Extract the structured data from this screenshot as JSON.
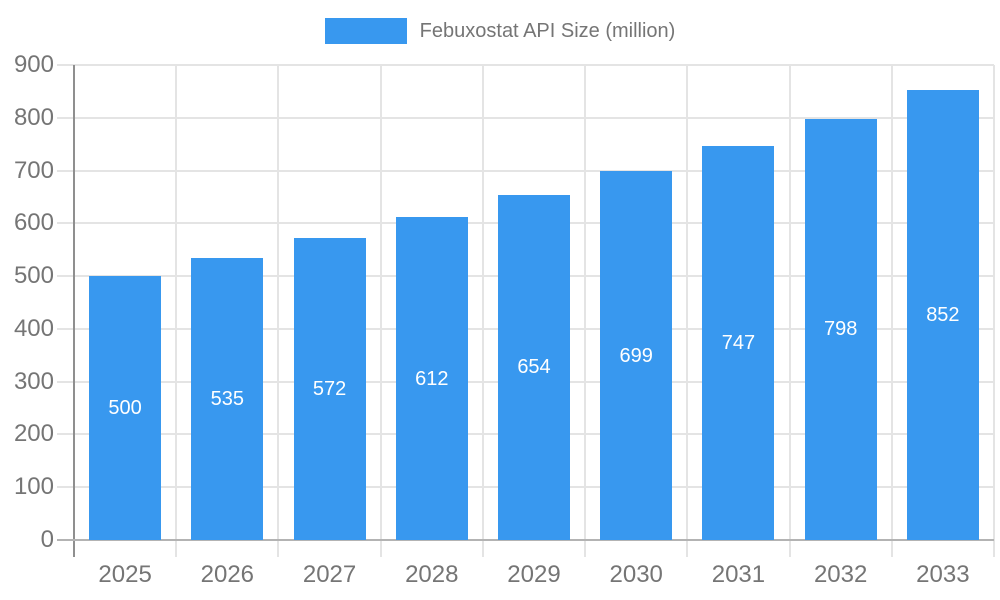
{
  "chart": {
    "legend_label": "Febuxostat API Size (million)",
    "bar_color": "#3898ef",
    "text_color": "#757575",
    "gridline_color": "#e4e4e4",
    "y_axis_color": "#8f8f8f",
    "x_axis_color": "#b3b3b3",
    "value_label_color": "#ffffff"
  },
  "chart_data": {
    "type": "bar",
    "title": "Febuxostat API Size (million)",
    "categories": [
      "2025",
      "2026",
      "2027",
      "2028",
      "2029",
      "2030",
      "2031",
      "2032",
      "2033"
    ],
    "values": [
      500,
      535,
      572,
      612,
      654,
      699,
      747,
      798,
      852
    ],
    "xlabel": "",
    "ylabel": "",
    "ylim": [
      0,
      900
    ],
    "yticks": [
      0,
      100,
      200,
      300,
      400,
      500,
      600,
      700,
      800,
      900
    ],
    "grid": true,
    "legend_position": "top-center",
    "bar_color": "#3898ef",
    "value_labels_position": "inside-center",
    "value_label_color": "#ffffff"
  }
}
